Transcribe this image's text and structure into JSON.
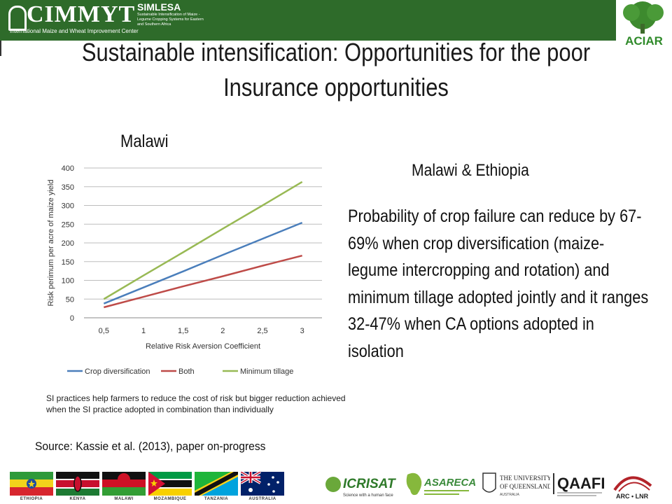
{
  "header": {
    "cimmyt_name": "CIMMYT",
    "cimmyt_sub": "International Maize and Wheat Improvement Center",
    "simlesa_name": "SIMLESA",
    "simlesa_sub": "Sustainable Intensification of Maize - Legume Cropping Systems for Eastern and Southern Africa",
    "aciar_name": "ACIAR"
  },
  "title": {
    "line1": "Sustainable intensification: Opportunities for the poor",
    "line2": "Insurance opportunities"
  },
  "left": {
    "heading": "Malawi",
    "note": "SI practices help farmers to reduce the cost of risk but bigger reduction achieved when the SI practice adopted in combination than individually",
    "source": "Source: Kassie et al. (2013), paper on-progress"
  },
  "right": {
    "heading": "Malawi & Ethiopia",
    "body": "Probability of crop failure can reduce by 67-69% when crop diversification (maize-legume intercropping and rotation)  and minimum tillage adopted jointly and it ranges 32-47% when CA options adopted in isolation"
  },
  "chart_data": {
    "type": "line",
    "x": [
      0.5,
      1,
      1.5,
      2,
      2.5,
      3
    ],
    "x_tick_labels": [
      "0,5",
      "1",
      "1,5",
      "2",
      "2,5",
      "3"
    ],
    "y_ticks": [
      0,
      50,
      100,
      150,
      200,
      250,
      300,
      350,
      400
    ],
    "xlabel": "Relative Risk Aversion Coefficient",
    "ylabel": "Risk perimum per acre of maize yield",
    "ylim": [
      0,
      400
    ],
    "grid": true,
    "legend": "bottom",
    "series": [
      {
        "name": "Crop diversification",
        "color": "#4a7ebb",
        "values": [
          38,
          81,
          124,
          168,
          211,
          254
        ]
      },
      {
        "name": "Both",
        "color": "#be4b48",
        "values": [
          28,
          56,
          84,
          111,
          139,
          166
        ]
      },
      {
        "name": "Minimum tillage",
        "color": "#98b954",
        "values": [
          50,
          113,
          175,
          238,
          300,
          363
        ]
      }
    ]
  },
  "footer": {
    "flags": [
      {
        "label": "ETHIOPIA"
      },
      {
        "label": "KENYA"
      },
      {
        "label": "MALAWI"
      },
      {
        "label": "MOZAMBIQUE"
      },
      {
        "label": "TANZANIA"
      },
      {
        "label": "AUSTRALIA"
      }
    ],
    "partners": {
      "icrisat": "ICRISAT",
      "icrisat_tag": "Science with a human face",
      "asareca": "ASARECA",
      "uq_line1": "THE UNIVERSITY",
      "uq_line2": "OF QUEENSLAND",
      "uq_line3": "AUSTRALIA",
      "qaafi": "QAAFI",
      "arc": "ARC • LNR"
    }
  }
}
